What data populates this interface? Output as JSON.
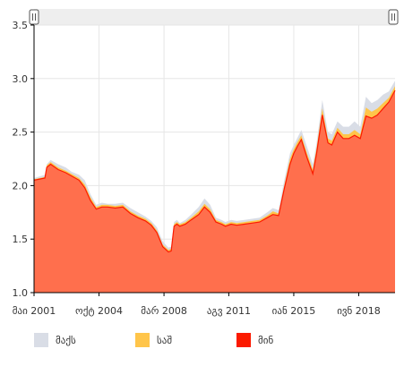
{
  "chart_data": {
    "type": "area",
    "x_ticks": [
      "მაი 2001",
      "ოქტ 2004",
      "მარ 2008",
      "აგვ 2011",
      "იან 2015",
      "ივნ 2018"
    ],
    "y_ticks": [
      "1.0",
      "1.5",
      "2.0",
      "2.5",
      "3.0",
      "3.5"
    ],
    "ylim": [
      1.0,
      3.5
    ],
    "xlim": [
      2001.33,
      2020.33
    ],
    "grid": true,
    "legend_position": "bottom",
    "scrollbar": true,
    "series": [
      {
        "name": "მაქს",
        "color": "#d9dde6",
        "x": [
          2001.33,
          2001.9,
          2002.0,
          2002.2,
          2002.6,
          2003.0,
          2003.3,
          2003.7,
          2004.0,
          2004.3,
          2004.6,
          2004.9,
          2005.2,
          2005.6,
          2006.0,
          2006.4,
          2006.8,
          2007.2,
          2007.5,
          2007.8,
          2008.1,
          2008.4,
          2008.55,
          2008.7,
          2008.85,
          2009.0,
          2009.3,
          2009.6,
          2010.0,
          2010.3,
          2010.6,
          2010.9,
          2011.2,
          2011.4,
          2011.7,
          2012.0,
          2012.4,
          2012.8,
          2013.2,
          2013.6,
          2013.9,
          2014.2,
          2014.5,
          2014.8,
          2015.0,
          2015.2,
          2015.4,
          2015.7,
          2016.0,
          2016.2,
          2016.5,
          2016.8,
          2017.0,
          2017.3,
          2017.6,
          2017.9,
          2018.2,
          2018.5,
          2018.8,
          2019.1,
          2019.4,
          2019.7,
          2020.0,
          2020.33
        ],
        "values": [
          2.07,
          2.1,
          2.2,
          2.24,
          2.2,
          2.17,
          2.13,
          2.1,
          2.05,
          1.92,
          1.82,
          1.84,
          1.83,
          1.83,
          1.84,
          1.79,
          1.75,
          1.71,
          1.67,
          1.61,
          1.48,
          1.42,
          1.43,
          1.66,
          1.68,
          1.65,
          1.68,
          1.73,
          1.8,
          1.88,
          1.82,
          1.7,
          1.68,
          1.66,
          1.68,
          1.67,
          1.68,
          1.69,
          1.7,
          1.75,
          1.79,
          1.77,
          2.05,
          2.3,
          2.38,
          2.45,
          2.52,
          2.36,
          2.2,
          2.4,
          2.8,
          2.5,
          2.48,
          2.6,
          2.55,
          2.55,
          2.6,
          2.55,
          2.83,
          2.77,
          2.8,
          2.85,
          2.88,
          2.98
        ]
      },
      {
        "name": "საშ",
        "color": "#ffc54a",
        "x": [
          2001.33,
          2001.9,
          2002.0,
          2002.2,
          2002.6,
          2003.0,
          2003.3,
          2003.7,
          2004.0,
          2004.3,
          2004.6,
          2004.9,
          2005.2,
          2005.6,
          2006.0,
          2006.4,
          2006.8,
          2007.2,
          2007.5,
          2007.8,
          2008.1,
          2008.4,
          2008.55,
          2008.7,
          2008.85,
          2009.0,
          2009.3,
          2009.6,
          2010.0,
          2010.3,
          2010.6,
          2010.9,
          2011.2,
          2011.4,
          2011.7,
          2012.0,
          2012.4,
          2012.8,
          2013.2,
          2013.6,
          2013.9,
          2014.2,
          2014.5,
          2014.8,
          2015.0,
          2015.2,
          2015.4,
          2015.7,
          2016.0,
          2016.2,
          2016.5,
          2016.8,
          2017.0,
          2017.3,
          2017.6,
          2017.9,
          2018.2,
          2018.5,
          2018.8,
          2019.1,
          2019.4,
          2019.7,
          2020.0,
          2020.33
        ],
        "values": [
          2.06,
          2.08,
          2.19,
          2.22,
          2.17,
          2.14,
          2.11,
          2.07,
          2.01,
          1.89,
          1.8,
          1.82,
          1.82,
          1.81,
          1.82,
          1.76,
          1.72,
          1.69,
          1.65,
          1.58,
          1.45,
          1.4,
          1.41,
          1.64,
          1.66,
          1.64,
          1.66,
          1.7,
          1.76,
          1.83,
          1.78,
          1.68,
          1.66,
          1.64,
          1.66,
          1.65,
          1.66,
          1.67,
          1.68,
          1.72,
          1.76,
          1.74,
          2.0,
          2.25,
          2.34,
          2.41,
          2.47,
          2.3,
          2.15,
          2.35,
          2.72,
          2.44,
          2.42,
          2.54,
          2.48,
          2.48,
          2.52,
          2.48,
          2.73,
          2.69,
          2.72,
          2.77,
          2.82,
          2.93
        ]
      },
      {
        "name": "მინ",
        "color": "#fb1a00",
        "x": [
          2001.33,
          2001.9,
          2002.0,
          2002.2,
          2002.6,
          2003.0,
          2003.3,
          2003.7,
          2004.0,
          2004.3,
          2004.6,
          2004.9,
          2005.2,
          2005.6,
          2006.0,
          2006.4,
          2006.8,
          2007.2,
          2007.5,
          2007.8,
          2008.1,
          2008.4,
          2008.55,
          2008.7,
          2008.85,
          2009.0,
          2009.3,
          2009.6,
          2010.0,
          2010.3,
          2010.6,
          2010.9,
          2011.2,
          2011.4,
          2011.7,
          2012.0,
          2012.4,
          2012.8,
          2013.2,
          2013.6,
          2013.9,
          2014.2,
          2014.5,
          2014.8,
          2015.0,
          2015.2,
          2015.4,
          2015.7,
          2016.0,
          2016.2,
          2016.5,
          2016.8,
          2017.0,
          2017.3,
          2017.6,
          2017.9,
          2018.2,
          2018.5,
          2018.8,
          2019.1,
          2019.4,
          2019.7,
          2020.0,
          2020.33
        ],
        "values": [
          2.05,
          2.07,
          2.17,
          2.2,
          2.15,
          2.12,
          2.09,
          2.05,
          1.98,
          1.86,
          1.78,
          1.8,
          1.8,
          1.79,
          1.8,
          1.74,
          1.7,
          1.67,
          1.63,
          1.56,
          1.43,
          1.38,
          1.39,
          1.62,
          1.64,
          1.62,
          1.64,
          1.68,
          1.73,
          1.8,
          1.75,
          1.66,
          1.64,
          1.62,
          1.64,
          1.63,
          1.64,
          1.65,
          1.66,
          1.7,
          1.73,
          1.72,
          1.97,
          2.2,
          2.3,
          2.37,
          2.43,
          2.26,
          2.11,
          2.3,
          2.66,
          2.4,
          2.38,
          2.5,
          2.44,
          2.44,
          2.47,
          2.44,
          2.65,
          2.63,
          2.66,
          2.72,
          2.78,
          2.89
        ]
      }
    ],
    "fill_color": "#ff6f4d"
  },
  "legend": {
    "items": [
      {
        "label": "მაქს",
        "color": "#d9dde6"
      },
      {
        "label": "საშ",
        "color": "#ffc54a"
      },
      {
        "label": "მინ",
        "color": "#fb1a00"
      }
    ]
  },
  "colors": {
    "grid": "#e6e6e6",
    "axis": "#000000",
    "scrollbar_bg": "#eeeeee",
    "handle_border": "#555555"
  }
}
